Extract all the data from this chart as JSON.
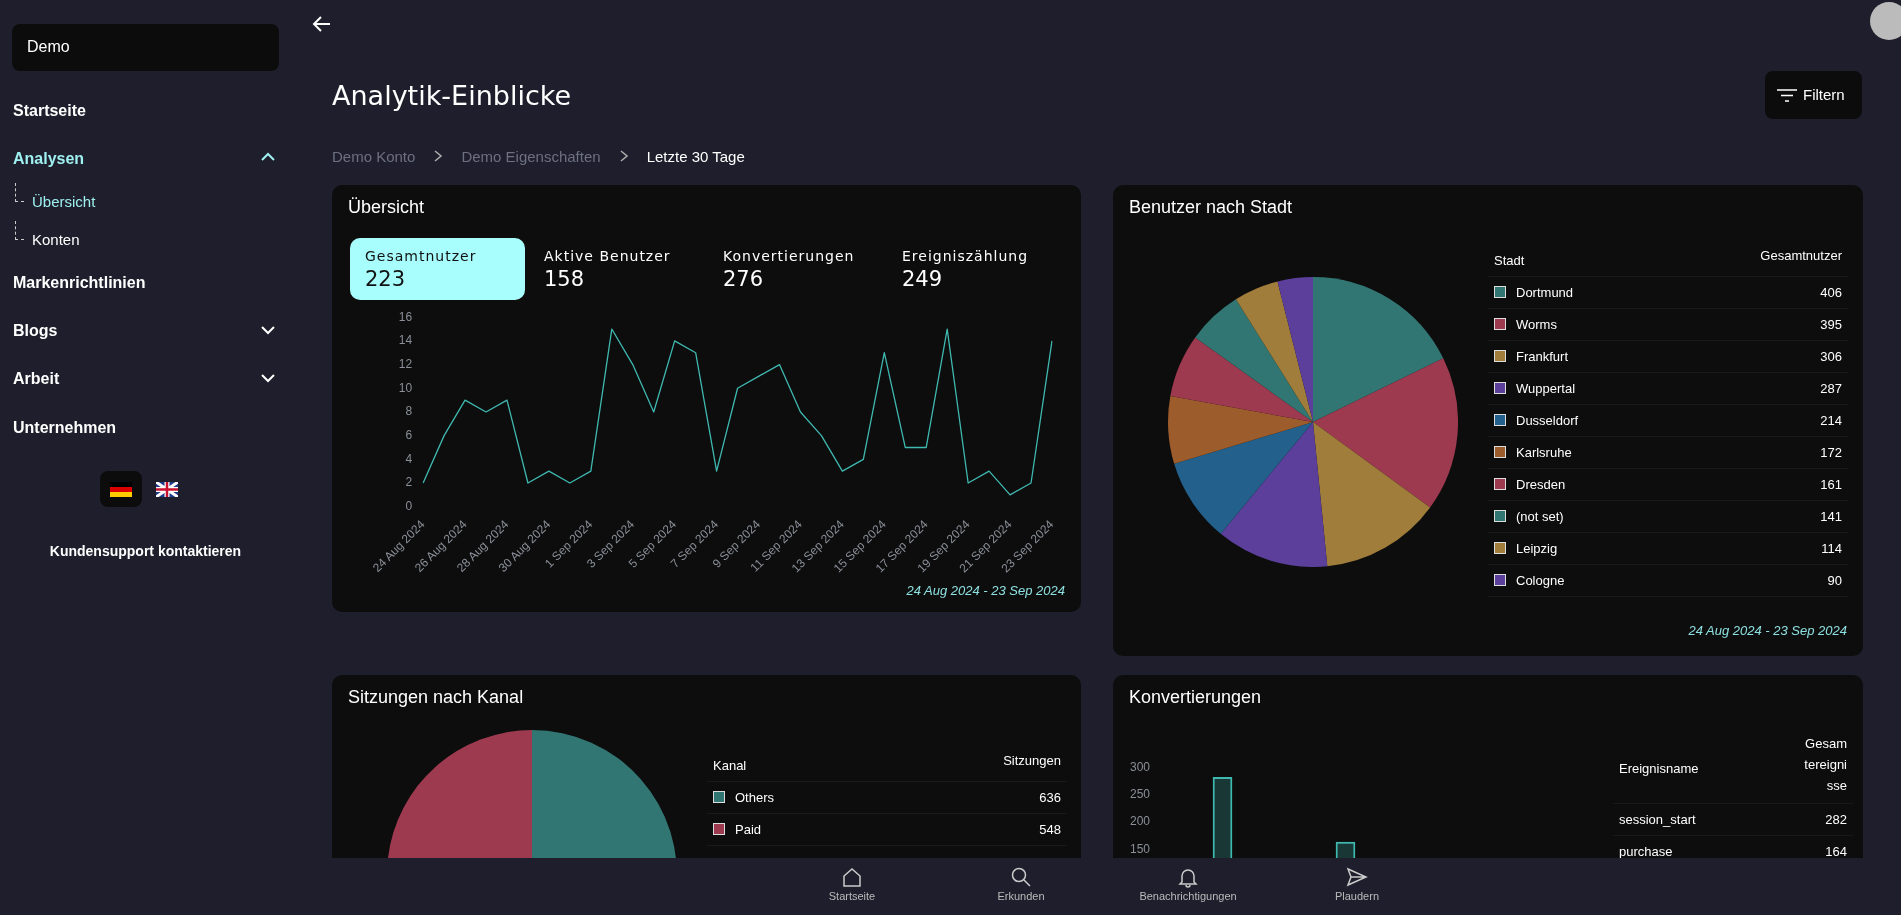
{
  "chart_data": [
    {
      "type": "other",
      "title": "Demo",
      "categories": [
        "Startseite",
        "Analysen",
        "Übersicht",
        "Konten",
        "Markenrichtlinien",
        "Blogs",
        "Arbeit",
        "Unternehmen"
      ],
      "annotations": [
        "Kundensupport kontaktieren"
      ]
    },
    {
      "type": "other",
      "title": "Analytik-Einblicke",
      "categories": [
        "Demo Konto",
        "Demo Eigenschaften",
        "Letzte 30 Tage"
      ],
      "annotations": [
        "Filtern"
      ]
    },
    {
      "type": "other",
      "title": "Übersicht",
      "categories": [
        "Gesamtnutzer",
        "Aktive Benutzer",
        "Konvertierungen",
        "Ereigniszählung"
      ],
      "values": [
        223,
        158,
        276,
        249
      ],
      "colors": [
        "#a8fdfd",
        "#0d0d0d",
        "#0d0d0d",
        "#0d0d0d"
      ],
      "data_labels": true
    },
    {
      "type": "line",
      "categories": [
        "24 Aug 2024",
        null,
        "26 Aug 2024",
        null,
        "28 Aug 2024",
        null,
        "30 Aug 2024",
        null,
        "1 Sep 2024",
        null,
        "3 Sep 2024",
        null,
        "5 Sep 2024",
        null,
        "7 Sep 2024",
        null,
        "9 Sep 2024",
        null,
        "11 Sep 2024",
        null,
        "13 Sep 2024",
        null,
        "15 Sep 2024",
        null,
        "17 Sep 2024",
        null,
        "19 Sep 2024",
        null,
        "21 Sep 2024",
        null,
        "23 Sep 2024"
      ],
      "values": [
        2,
        6,
        9,
        8,
        9,
        2,
        3,
        2,
        3,
        15,
        12,
        8,
        14,
        13,
        3,
        10,
        11,
        12,
        8,
        6,
        3,
        4,
        13,
        5,
        5,
        15,
        2,
        3,
        1,
        2,
        14
      ],
      "color": "#3fb8b0",
      "ylim": [
        0,
        16
      ],
      "yticks": [
        0,
        2,
        4,
        6,
        8,
        10,
        12,
        14,
        16
      ],
      "grid": false,
      "marker": "none",
      "line_style": "solid",
      "annotations": [
        "24 Aug 2024 - 23 Sep 2024"
      ]
    },
    {
      "type": "pie",
      "title": "Benutzer nach Stadt",
      "legend_title": "Stadt",
      "ylabel": "Gesamtnutzer",
      "legend": "right",
      "data_labels": true,
      "categories": [
        "Dortmund",
        "Worms",
        "Frankfurt",
        "Wuppertal",
        "Dusseldorf",
        "Karlsruhe",
        "Dresden",
        "(not set)",
        "Leipzig",
        "Cologne"
      ],
      "values": [
        406,
        395,
        306,
        287,
        214,
        172,
        161,
        141,
        114,
        90
      ],
      "colors": [
        "#317673",
        "#9e3a50",
        "#a07d3a",
        "#5b3f9a",
        "#23608c",
        "#9c5c2c",
        "#9e3a50",
        "#317673",
        "#a07d3a",
        "#5b3f9a"
      ],
      "annotations": [
        "24 Aug 2024 - 23 Sep 2024"
      ]
    },
    {
      "type": "pie",
      "title": "Sitzungen nach Kanal",
      "legend_title": "Kanal",
      "ylabel": "Sitzungen",
      "legend": "right",
      "data_labels": true,
      "categories": [
        "Others",
        "Paid"
      ],
      "values": [
        636,
        548
      ],
      "colors": [
        "#317673",
        "#9e3a50"
      ]
    },
    {
      "type": "bar",
      "title": "Konvertierungen",
      "tick_labels": "y",
      "categories": [
        null,
        null
      ],
      "values": [
        282,
        164
      ],
      "color": "#3fb8b0",
      "ylim": [
        0,
        300
      ],
      "yticks": [
        150,
        200,
        250,
        300
      ],
      "grid": false
    },
    {
      "type": "other",
      "legend_title": "Ereignisname",
      "ylabel": "Gesamtereignisse",
      "data_labels": true,
      "categories": [
        "session_start",
        "purchase"
      ],
      "values": [
        282,
        164
      ]
    },
    {
      "type": "other",
      "categories": [
        "Startseite",
        "Erkunden",
        "Benachrichtigungen",
        "Plaudern"
      ]
    }
  ]
}
